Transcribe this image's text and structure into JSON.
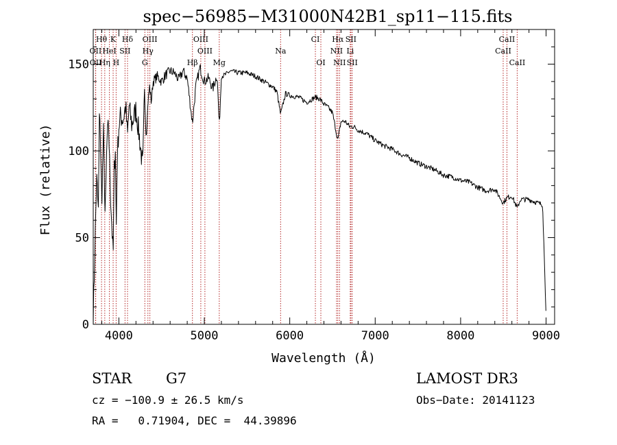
{
  "chart_data": {
    "type": "line",
    "title": "spec−56985−M31000N42B1_sp11−115.fits",
    "xlabel": "Wavelength (Å)",
    "ylabel": "Flux (relative)",
    "xlim": [
      3700,
      9100
    ],
    "ylim": [
      0,
      170
    ],
    "xticks": [
      4000,
      5000,
      6000,
      7000,
      8000,
      9000
    ],
    "yticks": [
      0,
      50,
      100,
      150
    ],
    "grid": false,
    "line_color": "#000000",
    "marker_color": "#b22222",
    "spectrum": {
      "name": "flux",
      "x": [
        3700,
        3720,
        3740,
        3760,
        3775,
        3790,
        3800,
        3820,
        3840,
        3860,
        3880,
        3900,
        3920,
        3933,
        3945,
        3960,
        3968,
        3980,
        4000,
        4020,
        4050,
        4080,
        4101,
        4120,
        4150,
        4200,
        4240,
        4280,
        4300,
        4320,
        4340,
        4360,
        4380,
        4400,
        4450,
        4500,
        4550,
        4600,
        4650,
        4700,
        4750,
        4800,
        4861,
        4900,
        4950,
        5000,
        5050,
        5100,
        5150,
        5175,
        5200,
        5250,
        5300,
        5400,
        5500,
        5600,
        5700,
        5800,
        5850,
        5893,
        5950,
        6000,
        6100,
        6200,
        6300,
        6350,
        6400,
        6450,
        6500,
        6563,
        6600,
        6650,
        6700,
        6750,
        6800,
        6900,
        7000,
        7100,
        7200,
        7300,
        7400,
        7500,
        7600,
        7700,
        7800,
        7900,
        8000,
        8100,
        8200,
        8300,
        8400,
        8498,
        8542,
        8600,
        8662,
        8700,
        8800,
        8900,
        8960,
        9000
      ],
      "y": [
        2,
        45,
        85,
        65,
        130,
        90,
        72,
        110,
        60,
        105,
        115,
        78,
        55,
        38,
        88,
        105,
        50,
        95,
        114,
        120,
        118,
        126,
        108,
        126,
        115,
        124,
        108,
        90,
        134,
        108,
        128,
        137,
        128,
        140,
        143,
        140,
        144,
        146,
        145,
        141,
        146,
        142,
        116,
        137,
        148,
        140,
        142,
        136,
        144,
        114,
        143,
        144,
        146,
        145,
        145,
        143,
        140,
        137,
        134,
        121,
        133,
        132,
        131,
        128,
        131,
        130,
        127,
        125,
        122,
        106,
        117,
        117,
        114,
        114,
        112,
        110,
        106,
        103,
        101,
        98,
        96,
        93,
        91,
        89,
        86,
        85,
        83,
        82,
        79,
        77,
        78,
        70,
        73,
        74,
        67,
        72,
        72,
        70,
        69,
        6
      ]
    },
    "lines": [
      {
        "name": "Hθ",
        "wavelength": 3797,
        "row": 0
      },
      {
        "name": "K",
        "wavelength": 3933,
        "row": 0
      },
      {
        "name": "Hδ",
        "wavelength": 4101,
        "row": 0
      },
      {
        "name": "OIII",
        "wavelength": 4363,
        "row": 0
      },
      {
        "name": "OIII",
        "wavelength": 4959,
        "row": 0
      },
      {
        "name": "CI",
        "wavelength": 6300,
        "row": 0
      },
      {
        "name": "Hα",
        "wavelength": 6563,
        "row": 0
      },
      {
        "name": "SII",
        "wavelength": 6716,
        "row": 0
      },
      {
        "name": "CaII",
        "wavelength": 8542,
        "row": 0
      },
      {
        "name": "OII",
        "wavelength": 3727,
        "row": 1
      },
      {
        "name": "HeI",
        "wavelength": 3889,
        "row": 1
      },
      {
        "name": "SII",
        "wavelength": 4072,
        "row": 1
      },
      {
        "name": "Hγ",
        "wavelength": 4340,
        "row": 1
      },
      {
        "name": "OIII",
        "wavelength": 5007,
        "row": 1
      },
      {
        "name": "Na",
        "wavelength": 5893,
        "row": 1
      },
      {
        "name": "NII",
        "wavelength": 6548,
        "row": 1
      },
      {
        "name": "Li",
        "wavelength": 6708,
        "row": 1
      },
      {
        "name": "CaII",
        "wavelength": 8498,
        "row": 1
      },
      {
        "name": "OII",
        "wavelength": 3729,
        "row": 2
      },
      {
        "name": "Hη",
        "wavelength": 3835,
        "row": 2
      },
      {
        "name": "H",
        "wavelength": 3968,
        "row": 2
      },
      {
        "name": "G",
        "wavelength": 4304,
        "row": 2
      },
      {
        "name": "Hβ",
        "wavelength": 4861,
        "row": 2
      },
      {
        "name": "Mg",
        "wavelength": 5175,
        "row": 2
      },
      {
        "name": "OI",
        "wavelength": 6364,
        "row": 2
      },
      {
        "name": "NII",
        "wavelength": 6583,
        "row": 2
      },
      {
        "name": "SII",
        "wavelength": 6731,
        "row": 2
      },
      {
        "name": "CaII",
        "wavelength": 8662,
        "row": 2
      }
    ]
  },
  "info": {
    "class": "STAR",
    "subclass": "G7",
    "survey": "LAMOST DR3",
    "cz": "cz = −100.9 ± 26.5 km/s",
    "obs_date": "Obs−Date: 20141123",
    "radec": "RA =   0.71904, DEC =  44.39896"
  }
}
